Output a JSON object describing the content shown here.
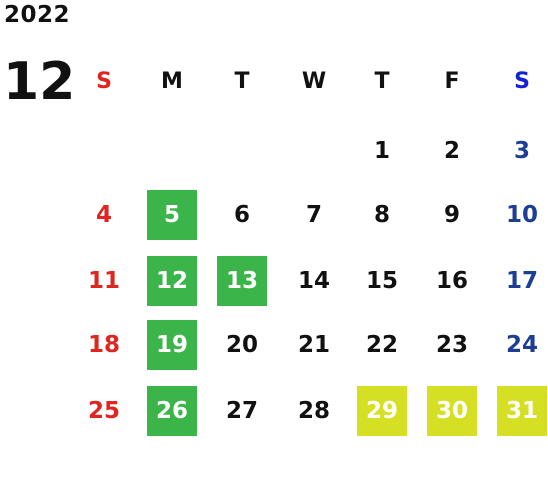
{
  "calendar": {
    "year": "2022",
    "month": "12",
    "colors": {
      "sunday": "#e0241f",
      "saturday": "#1c3f94",
      "saturday_header": "#1422d6",
      "highlight_green": "#3bb44a",
      "highlight_yellow": "#d5e024"
    },
    "weekdays": [
      "S",
      "M",
      "T",
      "W",
      "T",
      "F",
      "S"
    ],
    "weeks": [
      [
        {
          "day": ""
        },
        {
          "day": ""
        },
        {
          "day": ""
        },
        {
          "day": ""
        },
        {
          "day": "1"
        },
        {
          "day": "2"
        },
        {
          "day": "3"
        }
      ],
      [
        {
          "day": "4"
        },
        {
          "day": "5",
          "highlight": "green"
        },
        {
          "day": "6"
        },
        {
          "day": "7"
        },
        {
          "day": "8"
        },
        {
          "day": "9"
        },
        {
          "day": "10"
        }
      ],
      [
        {
          "day": "11"
        },
        {
          "day": "12",
          "highlight": "green"
        },
        {
          "day": "13",
          "highlight": "green"
        },
        {
          "day": "14"
        },
        {
          "day": "15"
        },
        {
          "day": "16"
        },
        {
          "day": "17"
        }
      ],
      [
        {
          "day": "18"
        },
        {
          "day": "19",
          "highlight": "green"
        },
        {
          "day": "20"
        },
        {
          "day": "21"
        },
        {
          "day": "22"
        },
        {
          "day": "23"
        },
        {
          "day": "24"
        }
      ],
      [
        {
          "day": "25"
        },
        {
          "day": "26",
          "highlight": "green"
        },
        {
          "day": "27"
        },
        {
          "day": "28"
        },
        {
          "day": "29",
          "highlight": "yellow"
        },
        {
          "day": "30",
          "highlight": "yellow"
        },
        {
          "day": "31",
          "highlight": "yellow"
        }
      ]
    ]
  }
}
